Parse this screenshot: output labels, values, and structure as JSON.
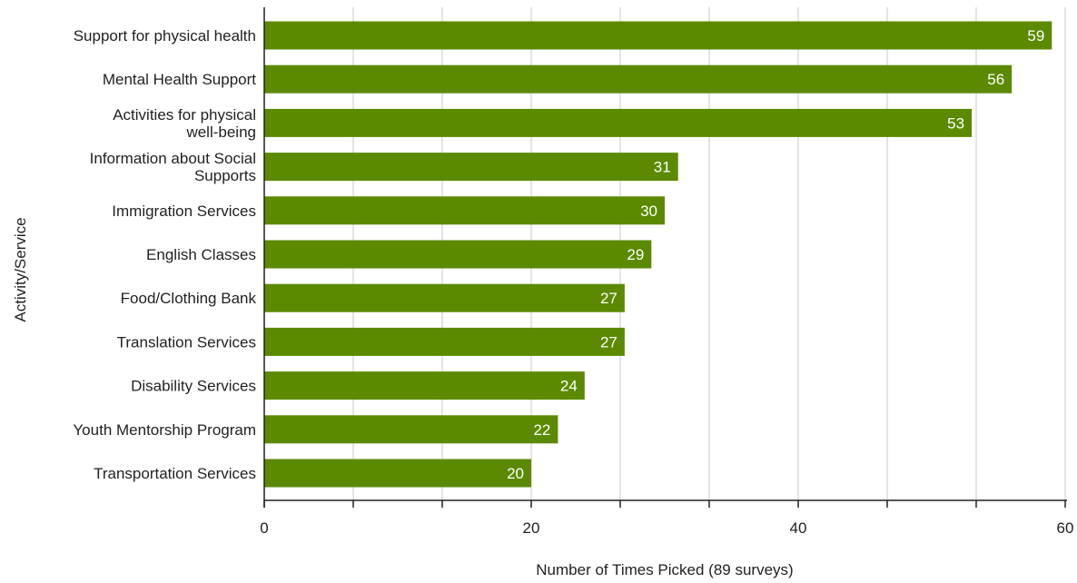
{
  "chart_data": {
    "type": "bar",
    "orientation": "horizontal",
    "title": "",
    "xlabel": "Number of Times Picked (89 surveys)",
    "ylabel": "Activity/Service",
    "xlim": [
      0,
      60
    ],
    "xticks": [
      0,
      20,
      40,
      60
    ],
    "grid": true,
    "bar_color": "#5b8a00",
    "categories": [
      "Support for physical health",
      "Mental Health Support",
      "Activities for physical well-being",
      "Information about Social Supports",
      "Immigration Services",
      "English Classes",
      "Food/Clothing Bank",
      "Translation Services",
      "Disability Services",
      "Youth Mentorship Program",
      "Transportation Services"
    ],
    "values": [
      59,
      56,
      53,
      31,
      30,
      29,
      27,
      27,
      24,
      22,
      20
    ]
  }
}
